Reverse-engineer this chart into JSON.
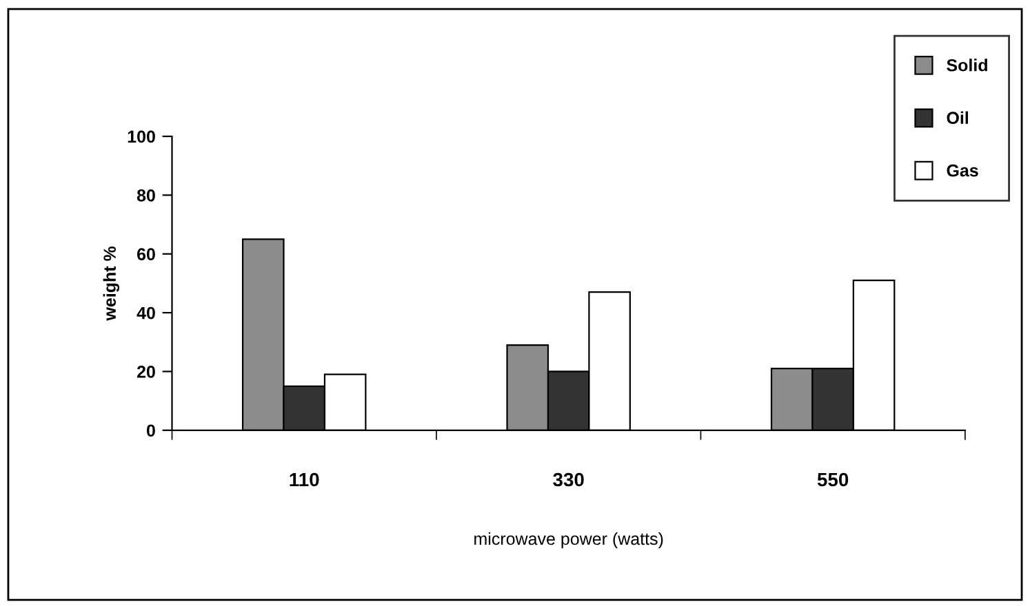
{
  "chart_data": {
    "type": "bar",
    "xlabel": "microwave power (watts)",
    "ylabel": "weight %",
    "categories": [
      "110",
      "330",
      "550"
    ],
    "series": [
      {
        "name": "Solid",
        "color": "#8c8c8c",
        "values": [
          65,
          29,
          21
        ]
      },
      {
        "name": "Oil",
        "color": "#333333",
        "values": [
          15,
          20,
          21
        ]
      },
      {
        "name": "Gas",
        "color": "#ffffff",
        "values": [
          19,
          47,
          51
        ]
      }
    ],
    "ylim": [
      0,
      100
    ],
    "yticks": [
      0,
      20,
      40,
      60,
      80,
      100
    ],
    "grid": false,
    "legend": "top right"
  }
}
